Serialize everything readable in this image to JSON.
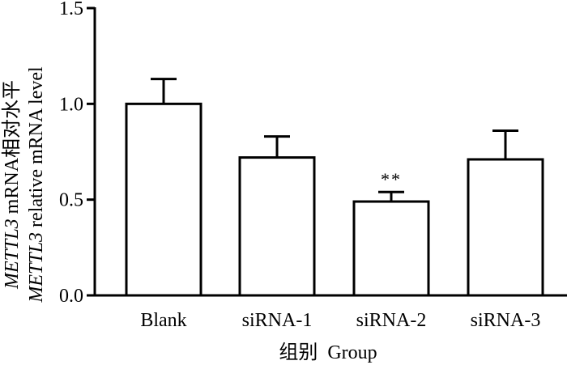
{
  "chart_data": {
    "type": "bar",
    "categories": [
      "Blank",
      "siRNA-1",
      "siRNA-2",
      "siRNA-3"
    ],
    "values": [
      1.0,
      0.72,
      0.49,
      0.71
    ],
    "errors": [
      0.13,
      0.11,
      0.05,
      0.15
    ],
    "annotations": [
      "",
      "",
      "**",
      ""
    ],
    "ylim": [
      0,
      1.5
    ],
    "yticks": [
      0.0,
      0.5,
      1.0,
      1.5
    ],
    "ytick_labels": [
      "0.0",
      "0.5",
      "1.0",
      "1.5"
    ],
    "xlabel": "组别  Group",
    "ylabel_line1_italic": "METTL3",
    "ylabel_line1_rest": " mRNA相对水平",
    "ylabel_line2_italic": "METTL3",
    "ylabel_line2_rest": " relative mRNA level",
    "grid": false,
    "colors": {
      "bar_fill": "#ffffff",
      "bar_stroke": "#000000"
    }
  }
}
